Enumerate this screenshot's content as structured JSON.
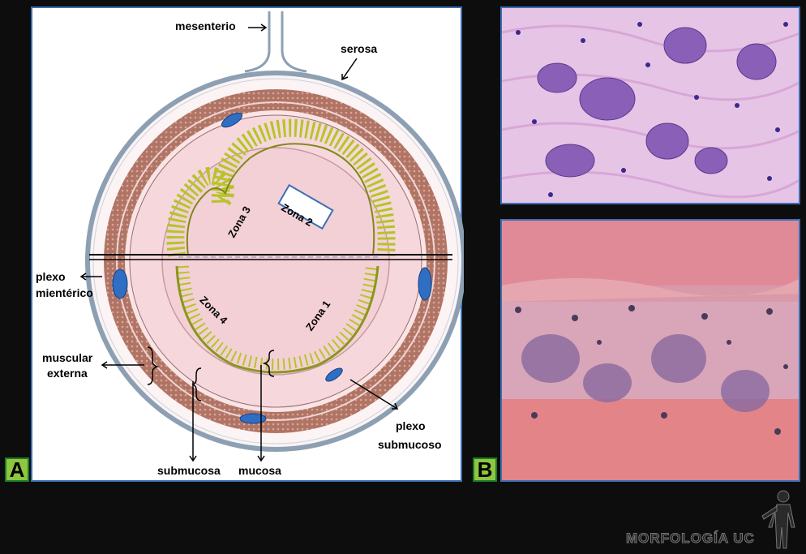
{
  "panels": {
    "a_label": "A",
    "b_label": "B"
  },
  "diagram": {
    "labels": {
      "mesenterio": "mesenterio",
      "serosa": "serosa",
      "plexo_mienterico_1": "plexo",
      "plexo_mienterico_2": "mientérico",
      "muscular_externa_1": "muscular",
      "muscular_externa_2": "externa",
      "plexo_submucoso_1": "plexo",
      "plexo_submucoso_2": "submucoso",
      "submucosa": "submucosa",
      "mucosa": "mucosa"
    },
    "zones": {
      "zona1": "Zona 1",
      "zona2": "Zona 2",
      "zona3": "Zona 3",
      "zona4": "Zona 4"
    }
  },
  "branding": {
    "logo_text": "MORFOLOGÍA UC"
  },
  "colors": {
    "panel_border": "#3b6fb5",
    "badge_fill": "#8ec63f",
    "badge_border": "#1d7a2a",
    "muscle": "#a0665a",
    "submucosa": "#f6d8dc",
    "mucosa": "#b5c42a",
    "plexus": "#2e6fc4"
  }
}
